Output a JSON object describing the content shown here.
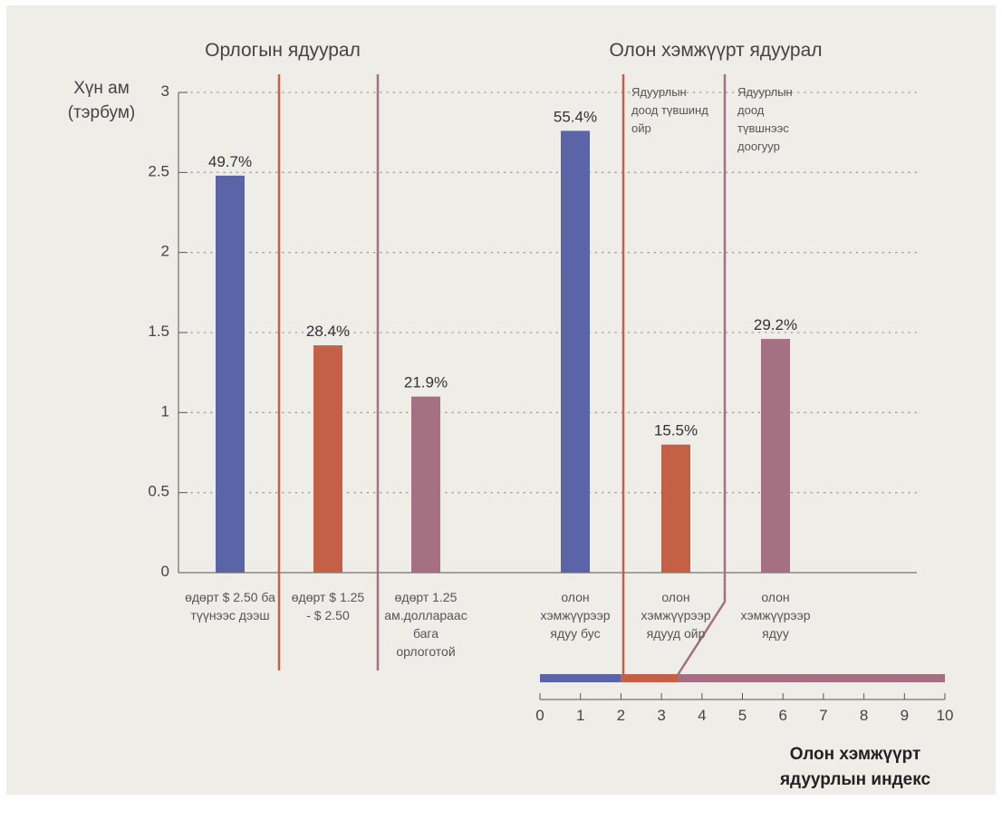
{
  "chart_data": {
    "type": "bar",
    "section_titles": [
      "Орлогын ядуурал",
      "Олон хэмжүүрт ядуурал"
    ],
    "ylabel": [
      "Хүн ам",
      "(тэрбум)"
    ],
    "ylim": [
      0,
      3
    ],
    "yticks": [
      "0",
      "0.5",
      "1",
      "1.5",
      "2",
      "2.5",
      "3"
    ],
    "grid": true,
    "bars": [
      {
        "category": [
          "өдөрт $ 2.50 ба",
          "түүнээс дээш"
        ],
        "value": 2.48,
        "label": "49.7%",
        "color": "#5a64a6"
      },
      {
        "category": [
          "өдөрт $ 1.25",
          "- $ 2.50"
        ],
        "value": 1.42,
        "label": "28.4%",
        "color": "#c46045"
      },
      {
        "category": [
          "өдөрт 1.25",
          "ам.доллараас",
          "бага",
          "орлоготой"
        ],
        "value": 1.1,
        "label": "21.9%",
        "color": "#a57081"
      },
      {
        "category": [
          "олон",
          "хэмжүүрээр",
          "ядуу бус"
        ],
        "value": 2.76,
        "label": "55.4%",
        "color": "#5a64a6"
      },
      {
        "category": [
          "олон",
          "хэмжүүрээр",
          "ядууд ойр"
        ],
        "value": 0.8,
        "label": "15.5%",
        "color": "#c46045"
      },
      {
        "category": [
          "олон",
          "хэмжүүрээр",
          "ядуу"
        ],
        "value": 1.46,
        "label": "29.2%",
        "color": "#a57081"
      }
    ],
    "annotations": [
      [
        "Ядуурлын",
        "доод түвшинд",
        "ойр"
      ],
      [
        "Ядуурлын",
        "доод",
        "түвшнээс",
        "доогуур"
      ]
    ],
    "index_scale": {
      "ticks": [
        "0",
        "1",
        "2",
        "3",
        "4",
        "5",
        "6",
        "7",
        "8",
        "9",
        "10"
      ],
      "range": [
        0,
        10
      ],
      "segments": [
        {
          "from": 0,
          "to": 2,
          "color": "#5a64a6"
        },
        {
          "from": 2,
          "to": 3.4,
          "color": "#c46045"
        },
        {
          "from": 3.4,
          "to": 10,
          "color": "#a57081"
        }
      ],
      "title": [
        "Олон хэмжүүрт",
        "ядуурлын индекс"
      ]
    },
    "divider_colors": [
      "#c46045",
      "#a57081"
    ]
  }
}
